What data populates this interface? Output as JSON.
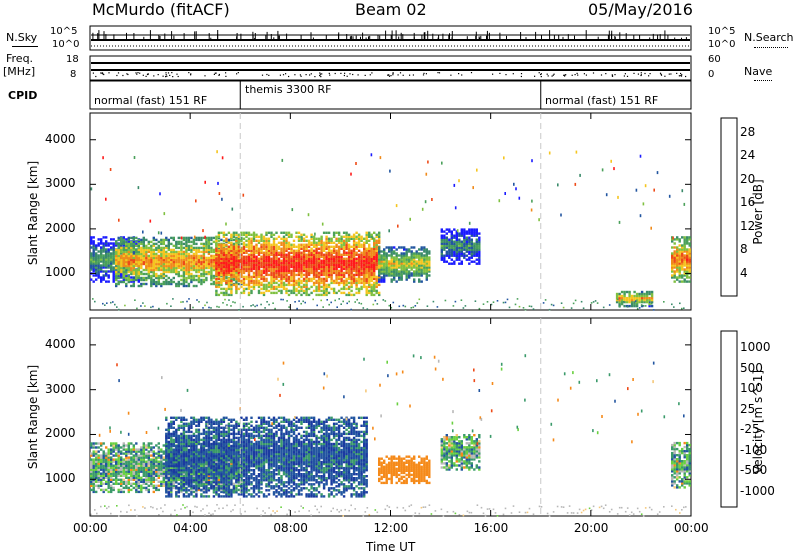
{
  "header": {
    "radar": "McMurdo (fitACF)",
    "beam": "Beam 02",
    "date": "05/May/2016"
  },
  "status_panels": {
    "nsky_label": "N.Sky",
    "nsky_ticks": [
      "10^5",
      "10^0"
    ],
    "nsearch_label": "N.Search",
    "nsearch_ticks": [
      "10^5",
      "10^0"
    ],
    "freq_label": "Freq.",
    "freq_unit": "[MHz]",
    "freq_ticks": [
      "18",
      "8"
    ],
    "nave_label": "Nave",
    "nave_ticks": [
      "60",
      "0"
    ],
    "cpid_label": "CPID",
    "cpid_segments": [
      {
        "label": "normal (fast) 151 RF",
        "start_h": 0,
        "end_h": 6
      },
      {
        "label": "themis 3300 RF",
        "start_h": 6,
        "end_h": 18
      },
      {
        "label": "normal (fast) 151 RF",
        "start_h": 18,
        "end_h": 24
      }
    ]
  },
  "colors": {
    "power": [
      "#1a1aff",
      "#2255a0",
      "#3a8a6a",
      "#4aa05a",
      "#7fc040",
      "#f5c51f",
      "#f08a1a",
      "#ee4a17",
      "#ff1a1a"
    ],
    "velocity": [
      "#ff1a1a",
      "#ee4a17",
      "#f58a1a",
      "#f5c87a",
      "#b8b8b8",
      "#6ad040",
      "#3a9a6a",
      "#2255a0",
      "#1a3aa0"
    ]
  },
  "chart_data": [
    {
      "type": "heatmap",
      "title": "",
      "ylabel": "Slant Range [km]",
      "xlabel": "",
      "xlim": [
        "00:00",
        "24:00"
      ],
      "ylim": [
        180,
        4600
      ],
      "x_ticks": [
        "00:00",
        "04:00",
        "08:00",
        "12:00",
        "16:00",
        "20:00",
        "00:00"
      ],
      "y_ticks": [
        1000,
        2000,
        3000,
        4000
      ],
      "colorbar": {
        "label": "Power [dB]",
        "ticks": [
          4,
          8,
          12,
          16,
          20,
          24,
          28
        ],
        "range": [
          0,
          30
        ]
      },
      "cpid_boundaries_h": [
        6,
        18
      ],
      "echo_regions": [
        {
          "start_h": 0.0,
          "end_h": 2.0,
          "range_km": [
            800,
            1800
          ],
          "value": 12
        },
        {
          "start_h": 1.0,
          "end_h": 6.0,
          "range_km": [
            700,
            1800
          ],
          "value": 22
        },
        {
          "start_h": 5.0,
          "end_h": 11.5,
          "range_km": [
            500,
            1900
          ],
          "value": 28
        },
        {
          "start_h": 11.5,
          "end_h": 13.5,
          "range_km": [
            800,
            1600
          ],
          "value": 18
        },
        {
          "start_h": 14.0,
          "end_h": 15.5,
          "range_km": [
            1200,
            2000
          ],
          "value": 10
        },
        {
          "start_h": 21.0,
          "end_h": 22.5,
          "range_km": [
            250,
            600
          ],
          "value": 20
        },
        {
          "start_h": 23.2,
          "end_h": 24.0,
          "range_km": [
            800,
            1800
          ],
          "value": 24
        }
      ]
    },
    {
      "type": "heatmap",
      "title": "",
      "ylabel": "Slant Range [km]",
      "xlabel": "Time UT",
      "xlim": [
        "00:00",
        "24:00"
      ],
      "ylim": [
        180,
        4600
      ],
      "x_ticks": [
        "00:00",
        "04:00",
        "08:00",
        "12:00",
        "16:00",
        "20:00",
        "00:00"
      ],
      "y_ticks": [
        1000,
        2000,
        3000,
        4000
      ],
      "colorbar": {
        "label": "Velocity [m s^-1]",
        "ticks": [
          1000,
          500,
          100,
          25,
          -25,
          -100,
          -500,
          -1000
        ]
      },
      "cpid_boundaries_h": [
        6,
        18
      ],
      "echo_regions": [
        {
          "start_h": 0.0,
          "end_h": 6.0,
          "range_km": [
            700,
            1800
          ],
          "value": 100
        },
        {
          "start_h": 3.0,
          "end_h": 11.0,
          "range_km": [
            600,
            2400
          ],
          "value": 800
        },
        {
          "start_h": 11.5,
          "end_h": 13.5,
          "range_km": [
            900,
            1500
          ],
          "value": -300
        },
        {
          "start_h": 14.0,
          "end_h": 15.5,
          "range_km": [
            1200,
            2000
          ],
          "value": 100
        },
        {
          "start_h": 23.2,
          "end_h": 24.0,
          "range_km": [
            800,
            1800
          ],
          "value": 100
        }
      ]
    }
  ]
}
